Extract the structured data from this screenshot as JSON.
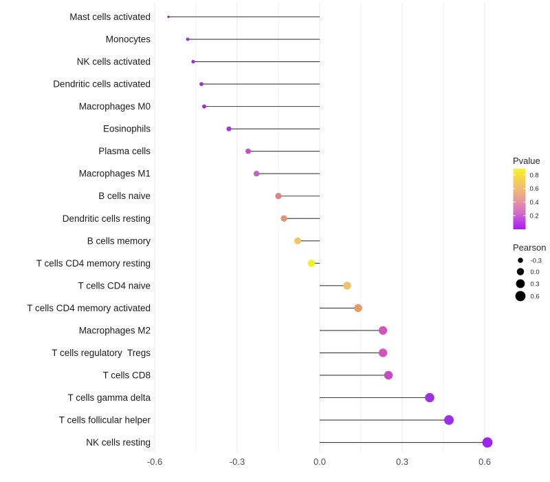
{
  "chart_data": {
    "type": "scatter",
    "variant": "lollipop",
    "title": "",
    "xlabel": "",
    "ylabel": "",
    "xlim": [
      -0.61,
      0.66
    ],
    "grid": "vertical-only",
    "x_ticks": [
      -0.6,
      -0.3,
      0.0,
      0.3,
      0.6
    ],
    "x_tick_labels": [
      "-0.6",
      "-0.3",
      "0.0",
      "0.3",
      "0.6"
    ],
    "x_minor_ticks": [
      -0.45,
      -0.15,
      0.15,
      0.45
    ],
    "points": [
      {
        "label": "Mast cells activated",
        "pearson": -0.55,
        "color": "#8F2BD1"
      },
      {
        "label": "Monocytes",
        "pearson": -0.48,
        "color": "#9632DC"
      },
      {
        "label": "NK cells activated",
        "pearson": -0.46,
        "color": "#9A30D8"
      },
      {
        "label": "Dendritic cells activated",
        "pearson": -0.43,
        "color": "#9B30D9"
      },
      {
        "label": "Macrophages M0",
        "pearson": -0.42,
        "color": "#9D2FD6"
      },
      {
        "label": "Eosinophils",
        "pearson": -0.33,
        "color": "#A935DA"
      },
      {
        "label": "Plasma cells",
        "pearson": -0.26,
        "color": "#C250CE"
      },
      {
        "label": "Macrophages M1",
        "pearson": -0.23,
        "color": "#C95EC6"
      },
      {
        "label": "B cells naive",
        "pearson": -0.15,
        "color": "#DD8482"
      },
      {
        "label": "Dendritic cells resting",
        "pearson": -0.13,
        "color": "#E5946F"
      },
      {
        "label": "B cells memory",
        "pearson": -0.08,
        "color": "#F2C35E"
      },
      {
        "label": "T cells CD4 memory resting",
        "pearson": -0.03,
        "color": "#F4F01E"
      },
      {
        "label": "T cells CD4 naive",
        "pearson": 0.1,
        "color": "#EFC26A"
      },
      {
        "label": "T cells CD4 memory activated",
        "pearson": 0.14,
        "color": "#E79A68"
      },
      {
        "label": "Macrophages M2",
        "pearson": 0.23,
        "color": "#D253BE"
      },
      {
        "label": "T cells regulatory  Tregs",
        "pearson": 0.23,
        "color": "#D253BE"
      },
      {
        "label": "T cells CD8",
        "pearson": 0.25,
        "color": "#CC47C2"
      },
      {
        "label": "T cells gamma delta",
        "pearson": 0.4,
        "color": "#9C32E4"
      },
      {
        "label": "T cells follicular helper",
        "pearson": 0.47,
        "color": "#9C2FE9"
      },
      {
        "label": "NK cells resting",
        "pearson": 0.61,
        "color": "#9D26EC"
      }
    ],
    "legend_pvalue": {
      "title": "Pvalue",
      "domain": [
        0,
        0.89
      ],
      "ticks": [
        0.8,
        0.6,
        0.4,
        0.2
      ],
      "tick_labels": [
        "0.8",
        "0.6",
        "0.4",
        "0.2"
      ],
      "gradient": [
        {
          "offset": 0,
          "color": "#F9F229"
        },
        {
          "offset": 12,
          "color": "#F7DC40"
        },
        {
          "offset": 28,
          "color": "#F2C46A"
        },
        {
          "offset": 45,
          "color": "#ECA68C"
        },
        {
          "offset": 58,
          "color": "#E18CA6"
        },
        {
          "offset": 72,
          "color": "#D26FC6"
        },
        {
          "offset": 86,
          "color": "#BC44E2"
        },
        {
          "offset": 100,
          "color": "#A81EF2"
        }
      ]
    },
    "legend_pearson": {
      "title": "Pearson",
      "sizes": [
        -0.3,
        0.0,
        0.3,
        0.6
      ],
      "size_labels": [
        "-0.3",
        "0.0",
        "0.3",
        "0.6"
      ],
      "dot_color": "#000000"
    },
    "colors": {
      "stem": "#3A3A3A",
      "grid_major": "#E7E7E7",
      "grid_minor": "#F2F2F2",
      "axis_text_x": "#4D4D4D",
      "axis_text_y": "#1A1A1A",
      "legend_text": "#262626",
      "background": "#FFFFFF"
    }
  }
}
